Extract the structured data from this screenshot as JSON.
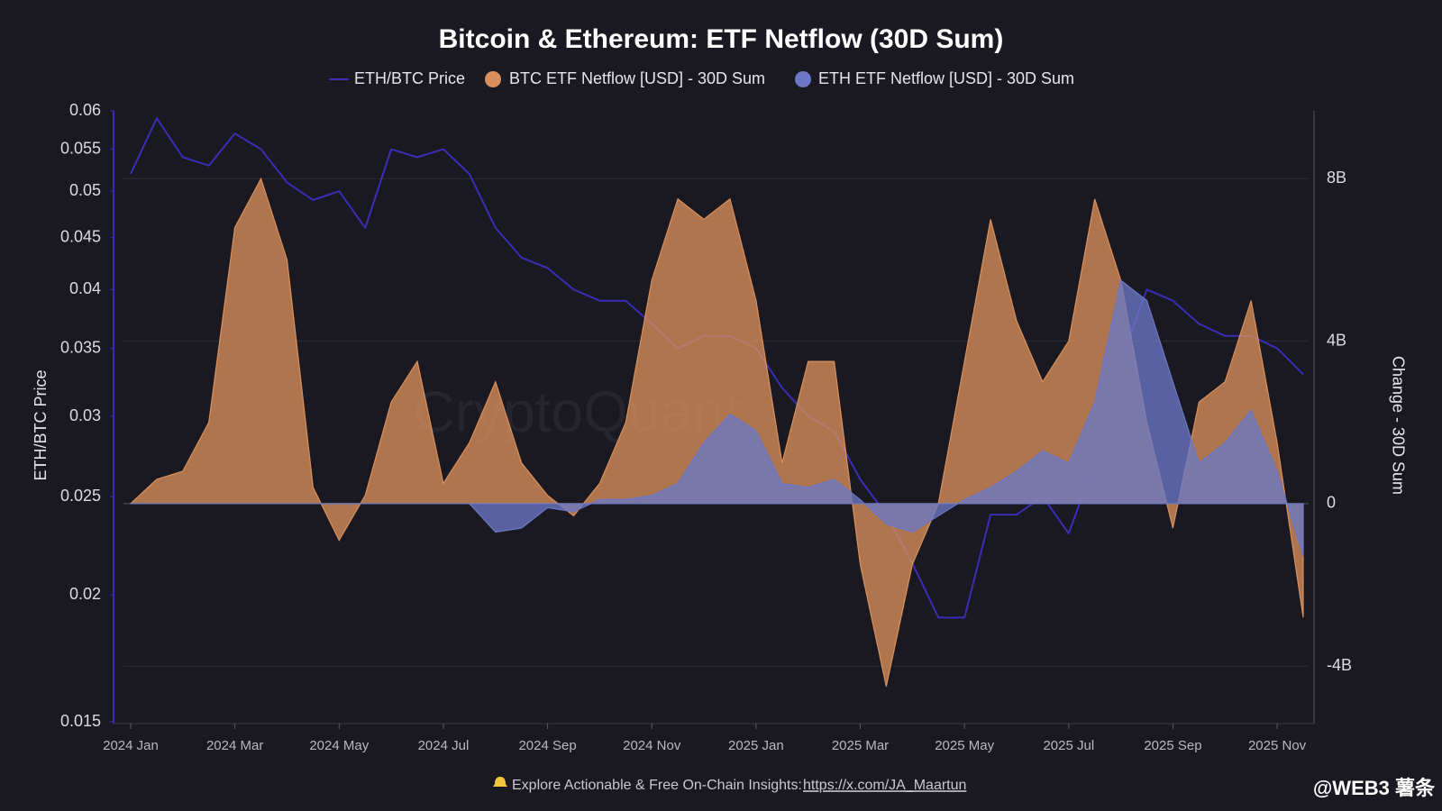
{
  "chart_data": {
    "type": "line",
    "title": "Bitcoin & Ethereum: ETF Netflow (30D Sum)",
    "legend": "top",
    "ylabel": "ETH/BTC Price",
    "y2label": "Change - 30D Sum",
    "watermark": "CryptoQuant",
    "footer_text": "Explore Actionable & Free On-Chain Insights:",
    "footer_link": "https://x.com/JA_Maartun",
    "credit": "@WEB3 薯条",
    "categories": [
      "2024 Jan",
      null,
      null,
      null,
      "2024 Mar",
      null,
      null,
      null,
      "2024 May",
      null,
      null,
      null,
      "2024 Jul",
      null,
      null,
      null,
      "2024 Sep",
      null,
      null,
      null,
      "2024 Nov",
      null,
      null,
      null,
      "2025 Jan",
      null,
      null,
      null,
      "2025 Mar",
      null,
      null,
      null,
      "2025 May",
      null,
      null,
      null,
      "2025 Jul",
      null,
      null,
      null,
      "2025 Sep",
      null,
      null,
      null,
      "2025 Nov",
      null
    ],
    "log_scale": true,
    "ylim": [
      0.015,
      0.06
    ],
    "yticks": [
      0.015,
      0.02,
      0.025,
      0.03,
      0.035,
      0.04,
      0.045,
      0.05,
      0.055,
      0.06
    ],
    "y2lim": [
      -5.37,
      9.67
    ],
    "y2ticks": [
      {
        "value": -4,
        "label": "-4B"
      },
      0,
      {
        "value": 4,
        "label": "4B"
      },
      {
        "value": 8,
        "label": "8B"
      }
    ],
    "grid": true,
    "series": [
      {
        "name": "ETH/BTC Price",
        "color": "#3b2db5",
        "type": "line",
        "axis": "y",
        "values": [
          0.052,
          0.059,
          0.054,
          0.053,
          0.057,
          0.055,
          0.051,
          0.049,
          0.05,
          0.046,
          0.055,
          0.054,
          0.055,
          0.052,
          0.046,
          0.043,
          0.042,
          0.04,
          0.039,
          0.039,
          0.037,
          0.035,
          0.036,
          0.036,
          0.035,
          0.032,
          0.03,
          0.029,
          0.026,
          0.024,
          0.0215,
          0.019,
          0.019,
          0.024,
          0.024,
          0.025,
          0.023,
          0.027,
          0.034,
          0.04,
          0.039,
          0.037,
          0.036,
          0.036,
          0.035,
          0.033
        ]
      },
      {
        "name": "BTC ETF Netflow [USD] - 30D Sum",
        "color": "#d9905c",
        "type": "area",
        "axis": "y2",
        "values": [
          0,
          0.6,
          0.8,
          2.0,
          6.8,
          8.0,
          6.0,
          0.4,
          -0.9,
          0.2,
          2.5,
          3.5,
          0.5,
          1.5,
          3.0,
          1.0,
          0.2,
          -0.3,
          0.5,
          2.0,
          5.5,
          7.5,
          7.0,
          7.5,
          5.0,
          1.0,
          3.5,
          3.5,
          -1.5,
          -4.5,
          -1.5,
          0,
          3.5,
          7.0,
          4.5,
          3.0,
          4.0,
          7.5,
          5.5,
          2.0,
          -0.6,
          2.5,
          3.0,
          5.0,
          1.5,
          -2.8
        ]
      },
      {
        "name": "ETH ETF Netflow [USD] - 30D Sum",
        "color": "#6b77c4",
        "type": "area",
        "axis": "y2",
        "values": [
          0,
          0,
          0,
          0,
          0,
          0,
          0,
          0,
          0,
          0,
          0,
          0,
          0,
          0,
          -0.7,
          -0.6,
          -0.1,
          -0.2,
          0.1,
          0.1,
          0.2,
          0.5,
          1.5,
          2.2,
          1.8,
          0.5,
          0.4,
          0.6,
          0.1,
          -0.5,
          -0.7,
          -0.3,
          0.1,
          0.4,
          0.8,
          1.3,
          1.0,
          2.5,
          5.5,
          5.0,
          3.0,
          1.0,
          1.5,
          2.3,
          0.8,
          -1.3
        ]
      }
    ]
  }
}
